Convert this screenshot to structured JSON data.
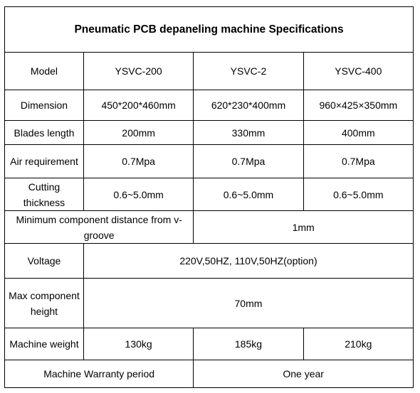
{
  "title": "Pneumatic PCB depaneling machine Specifications",
  "model": {
    "label": "Model",
    "values": [
      "YSVC-200",
      "YSVC-2",
      "YSVC-400"
    ]
  },
  "dimension": {
    "label": "Dimension",
    "values": [
      "450*200*460mm",
      "620*230*400mm",
      "960×425×350mm"
    ]
  },
  "blades_length": {
    "label": "Blades length",
    "values": [
      "200mm",
      "330mm",
      "400mm"
    ]
  },
  "air_requirement": {
    "label": "Air requirement",
    "values": [
      "0.7Mpa",
      "0.7Mpa",
      "0.7Mpa"
    ]
  },
  "cutting_thickness": {
    "label": "Cutting thickness",
    "values": [
      "0.6~5.0mm",
      "0.6~5.0mm",
      "0.6~5.0mm"
    ]
  },
  "min_component_distance": {
    "label": "Minimum component distance from v-groove",
    "value": "1mm"
  },
  "voltage": {
    "label": "Voltage",
    "value": "220V,50HZ, 110V,50HZ(option)"
  },
  "max_component_height": {
    "label": "Max component height",
    "value": "70mm"
  },
  "machine_weight": {
    "label": "Machine weight",
    "values": [
      "130kg",
      "185kg",
      "210kg"
    ]
  },
  "warranty": {
    "label": "Machine Warranty period",
    "value": "One year"
  }
}
